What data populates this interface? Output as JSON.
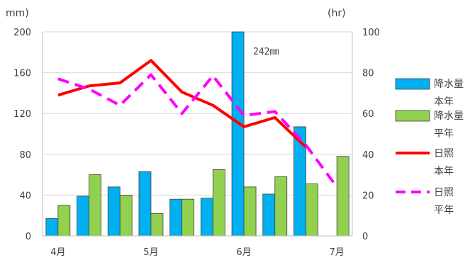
{
  "chart_data": {
    "type": "bar",
    "left_axis_unit": "mm)",
    "right_axis_unit": "(hr)",
    "left_ylim": [
      0,
      200
    ],
    "right_ylim": [
      0,
      100
    ],
    "left_ticks": [
      "0",
      "40",
      "80",
      "120",
      "160",
      "200"
    ],
    "right_ticks": [
      "0",
      "20",
      "40",
      "60",
      "80",
      "100"
    ],
    "month_labels": [
      "4月",
      "5月",
      "6月",
      "7月"
    ],
    "month_label_positions": [
      0,
      3,
      6,
      9
    ],
    "periods": 10,
    "grid": "horizontal",
    "legend_position": "right",
    "annotation": "242㎜",
    "series": [
      {
        "name": "降水量\n本年",
        "kind": "bar",
        "axis": "left",
        "color": "#00B0F0",
        "values": [
          17,
          39,
          48,
          63,
          36,
          37,
          242,
          41,
          107,
          0
        ]
      },
      {
        "name": "降水量\n平年",
        "kind": "bar",
        "axis": "left",
        "color": "#92D050",
        "values": [
          30,
          60,
          40,
          22,
          36,
          65,
          48,
          58,
          51,
          78
        ]
      },
      {
        "name": "日照\n本年",
        "kind": "line",
        "axis": "right",
        "color": "#FF0000",
        "dash": "solid",
        "values": [
          69,
          73.5,
          75,
          86,
          70.5,
          64,
          53.5,
          58,
          43.5,
          null
        ]
      },
      {
        "name": "日照\n平年",
        "kind": "line",
        "axis": "right",
        "color": "#FF00FF",
        "dash": "dashed",
        "values": [
          77,
          72,
          64,
          79,
          60,
          78.5,
          59,
          61,
          44.5,
          24
        ]
      }
    ]
  }
}
